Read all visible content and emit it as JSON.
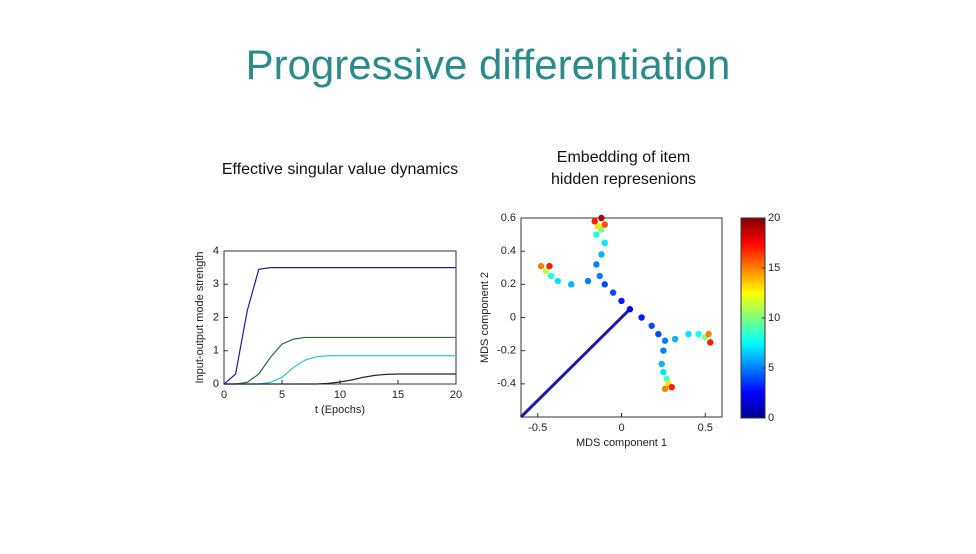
{
  "slide_title": "Progressive differentiation",
  "chart_data": [
    {
      "type": "line",
      "title": [
        "Effective singular value dynamics"
      ],
      "xlabel": "t (Epochs)",
      "ylabel": "Input-output mode strength",
      "x": [
        0,
        1,
        2,
        3,
        4,
        5,
        6,
        7,
        8,
        9,
        10,
        11,
        12,
        13,
        14,
        15,
        16,
        17,
        18,
        19,
        20
      ],
      "series": [
        {
          "color": "#1c1ca8",
          "values": [
            0,
            0.3,
            2.2,
            3.45,
            3.5,
            3.5,
            3.5,
            3.5,
            3.5,
            3.5,
            3.5,
            3.5,
            3.5,
            3.5,
            3.5,
            3.5,
            3.5,
            3.5,
            3.5,
            3.5,
            3.5
          ]
        },
        {
          "color": "#2e6a3a",
          "values": [
            0,
            0,
            0.05,
            0.3,
            0.8,
            1.2,
            1.35,
            1.4,
            1.4,
            1.4,
            1.4,
            1.4,
            1.4,
            1.4,
            1.4,
            1.4,
            1.4,
            1.4,
            1.4,
            1.4,
            1.4
          ]
        },
        {
          "color": "#2ec8c8",
          "values": [
            0,
            0,
            0,
            0,
            0.05,
            0.2,
            0.5,
            0.72,
            0.82,
            0.85,
            0.85,
            0.85,
            0.85,
            0.85,
            0.85,
            0.85,
            0.85,
            0.85,
            0.85,
            0.85,
            0.85
          ]
        },
        {
          "color": "#222244",
          "values": [
            0,
            0,
            0,
            0,
            0,
            0,
            0,
            0,
            0,
            0.02,
            0.06,
            0.12,
            0.2,
            0.26,
            0.29,
            0.3,
            0.3,
            0.3,
            0.3,
            0.3,
            0.3
          ]
        }
      ],
      "xlim": [
        0,
        20
      ],
      "xticks": [
        0,
        5,
        10,
        15,
        20
      ],
      "ylim": [
        0,
        4
      ],
      "yticks": [
        0,
        1,
        2,
        3,
        4
      ]
    },
    {
      "type": "scatter",
      "title": [
        "Embedding of item",
        "hidden represenions"
      ],
      "xlabel": "MDS component 1",
      "ylabel": "MDS component 2",
      "series": [
        {
          "color": "#1c1ca0",
          "x": [
            -0.6,
            0.05
          ],
          "y": [
            -0.6,
            0.05
          ]
        },
        {
          "x": [
            0.05,
            0,
            -0.05,
            -0.1,
            -0.13,
            -0.15,
            -0.12,
            -0.1,
            -0.15,
            -0.12,
            -0.14,
            -0.1,
            -0.16,
            -0.12,
            -0.2,
            -0.3,
            -0.38,
            -0.42,
            -0.45,
            -0.48,
            -0.43,
            0.12,
            0.18,
            0.22,
            0.26,
            0.32,
            0.4,
            0.46,
            0.5,
            0.52,
            0.53,
            0.25,
            0.24,
            0.25,
            0.27,
            0.28,
            0.3,
            0.26
          ],
          "y": [
            0.05,
            0.1,
            0.15,
            0.2,
            0.25,
            0.32,
            0.38,
            0.45,
            0.5,
            0.53,
            0.55,
            0.56,
            0.58,
            0.6,
            0.22,
            0.2,
            0.22,
            0.25,
            0.28,
            0.31,
            0.31,
            0,
            -0.05,
            -0.1,
            -0.14,
            -0.13,
            -0.1,
            -0.1,
            -0.12,
            -0.1,
            -0.15,
            -0.2,
            -0.28,
            -0.33,
            -0.37,
            -0.4,
            -0.42,
            -0.43
          ],
          "c": [
            2,
            3,
            4,
            4,
            5,
            5,
            6,
            7,
            8,
            10,
            13,
            16,
            17,
            19,
            5,
            6,
            7,
            8,
            11,
            15,
            17,
            3,
            4,
            4,
            5,
            6,
            7,
            8,
            10,
            15,
            17,
            5,
            6,
            7,
            9,
            13,
            17,
            15
          ]
        }
      ],
      "xlim": [
        -0.6,
        0.6
      ],
      "xticks": [
        -0.5,
        0,
        0.5
      ],
      "ylim": [
        -0.6,
        0.6
      ],
      "yticks": [
        -0.4,
        -0.2,
        0,
        0.2,
        0.4,
        0.6
      ],
      "clim": [
        0,
        20
      ],
      "cticks": [
        0,
        5,
        10,
        15,
        20
      ]
    }
  ]
}
